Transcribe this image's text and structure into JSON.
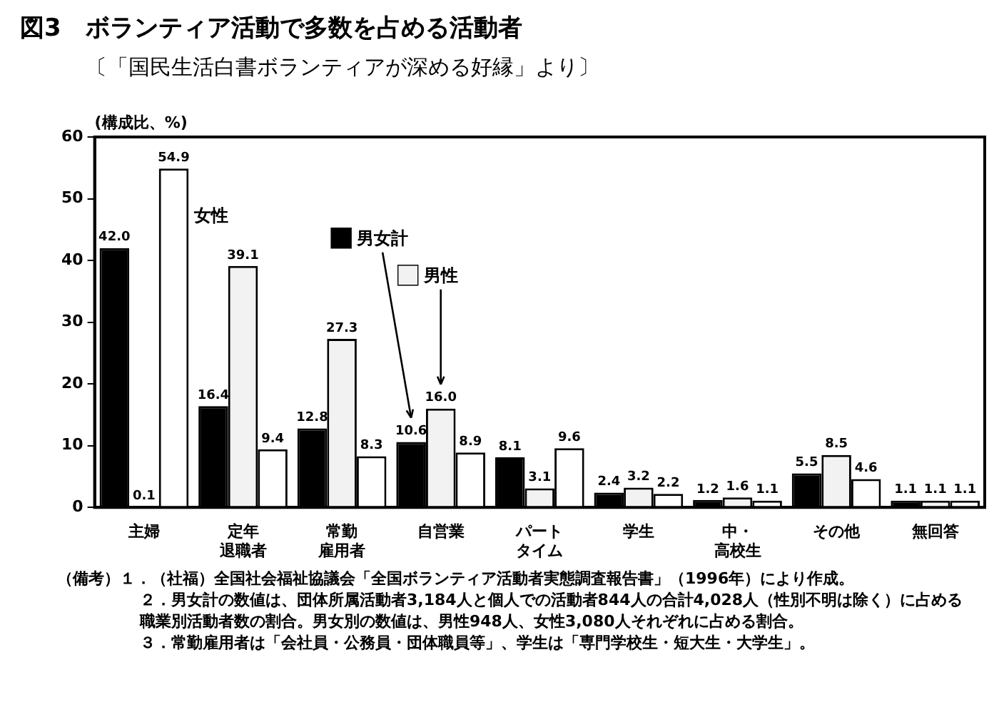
{
  "chart_data": {
    "type": "bar",
    "title": "図3　ボランティア活動で多数を占める活動者",
    "subtitle": "〔「国民生活白書ボランティアが深める好縁」より〕",
    "ylabel": "(構成比、%)",
    "categories": [
      "主婦",
      "定年退職者",
      "常勤雇用者",
      "自営業",
      "パートタイム",
      "学生",
      "中・高校生",
      "その他",
      "無回答"
    ],
    "series": [
      {
        "name": "男女計",
        "color": "#000000",
        "values": [
          42.0,
          16.4,
          12.8,
          10.6,
          8.1,
          2.4,
          1.2,
          5.5,
          1.1
        ],
        "value_labels": [
          "42.0",
          "16.4",
          "12.8",
          "10.6",
          "8.1",
          "2.4",
          "1.2",
          "5.5",
          "1.1"
        ]
      },
      {
        "name": "男性",
        "color": "#f2f2f2",
        "values": [
          0.1,
          39.1,
          27.3,
          16.0,
          3.1,
          3.2,
          1.6,
          8.5,
          1.1
        ],
        "value_labels": [
          "0.1",
          "39.1",
          "27.3",
          "16.0",
          "3.1",
          "3.2",
          "1.6",
          "8.5",
          "1.1"
        ]
      },
      {
        "name": "女性",
        "color": "#ffffff",
        "values": [
          54.9,
          9.4,
          8.3,
          8.9,
          9.6,
          2.2,
          1.1,
          4.6,
          1.1
        ],
        "value_labels": [
          "54.9",
          "9.4",
          "8.3",
          "8.9",
          "9.6",
          "2.2",
          "1.1",
          "4.6",
          "1.1"
        ]
      }
    ],
    "ylim": [
      0,
      60
    ],
    "yticks": [
      0,
      10,
      20,
      30,
      40,
      50,
      60
    ],
    "grid": false,
    "legend": "top",
    "annotations": [
      "（備考）１．（社福）全国社会福祉協議会「全国ボランティア活動者実態調査報告書」（1996年）により作成。",
      "２．男女計の数値は、団体所属活動者3,184人と個人での活動者844人の合計4,028人（性別不明は除く）に占める職業別活動者数の割合。男女別の数値は、男性948人、女性3,080人それぞれに占める割合。",
      "３．常勤雇用者は「会社員・公務員・団体職員等」、学生は「専門学校生・短大生・大学生」。"
    ]
  }
}
